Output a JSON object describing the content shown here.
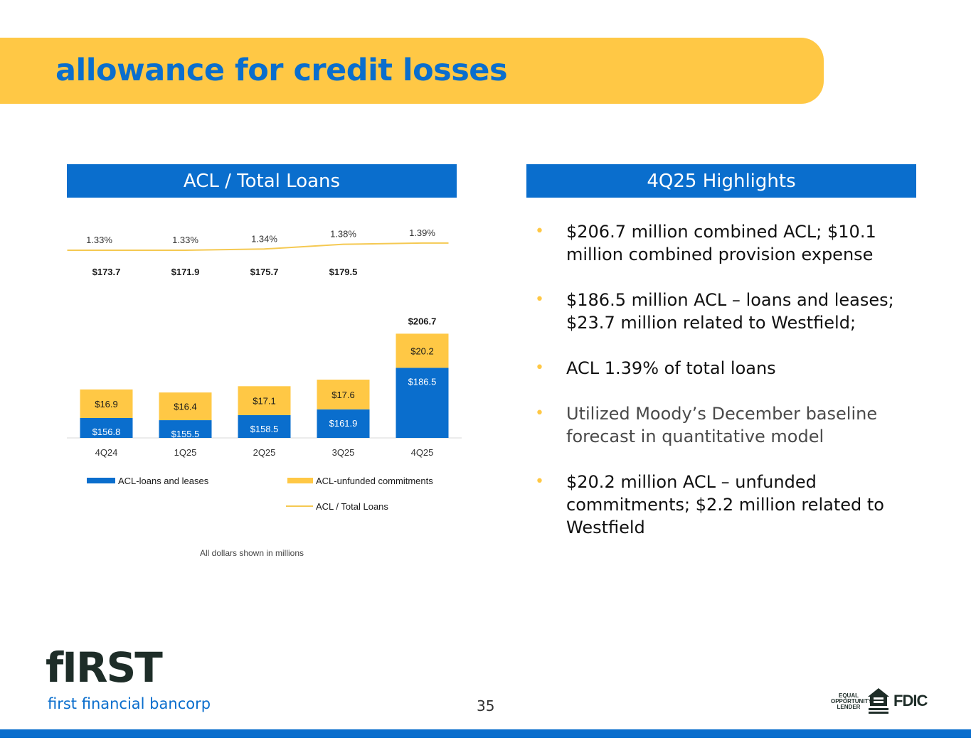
{
  "header": {
    "title": "allowance for credit losses"
  },
  "panels": {
    "left_title": "ACL / Total Loans",
    "right_title": "4Q25 Highlights"
  },
  "colors": {
    "brand_blue": "#0A6ECD",
    "brand_yellow": "#FFC845",
    "ratio_line": "#F5C952"
  },
  "chart_data": {
    "type": "bar",
    "stacked": true,
    "categories": [
      "4Q24",
      "1Q25",
      "2Q25",
      "3Q25",
      "4Q25"
    ],
    "series": [
      {
        "name": "ACL-loans and leases",
        "values": [
          156.8,
          155.5,
          158.5,
          161.9,
          186.5
        ],
        "labels": [
          "$156.8",
          "$155.5",
          "$158.5",
          "$161.9",
          "$186.5"
        ]
      },
      {
        "name": "ACL-unfunded commitments",
        "values": [
          16.9,
          16.4,
          17.1,
          17.6,
          20.2
        ],
        "labels": [
          "$16.9",
          "$16.4",
          "$17.1",
          "$17.6",
          "$20.2"
        ]
      }
    ],
    "totals": [
      173.7,
      171.9,
      175.7,
      179.5,
      206.7
    ],
    "total_labels": [
      "$173.7",
      "$171.9",
      "$175.7",
      "$179.5",
      "$206.7"
    ],
    "line_series": {
      "name": "ACL / Total Loans",
      "values": [
        1.33,
        1.33,
        1.34,
        1.38,
        1.39
      ],
      "labels": [
        "1.33%",
        "1.33%",
        "1.34%",
        "1.38%",
        "1.39%"
      ]
    },
    "legend_position": "bottom",
    "grid": false,
    "footnote": "All dollars shown in millions"
  },
  "highlights": [
    "$206.7 million combined ACL; $10.1 million combined provision expense",
    "$186.5 million ACL – loans and leases; $23.7 million related to Westfield;",
    "ACL 1.39% of total loans",
    "Utilized Moody’s December baseline forecast in quantitative model",
    "$20.2 million ACL – unfunded commitments; $2.2 million related to Westfield"
  ],
  "footer": {
    "logo_word": "fIRST",
    "logo_sub": "first financial bancorp",
    "page_number": "35",
    "equal_opportunity": "EQUAL OPPORTUNITY LENDER",
    "fdic": "FDIC"
  }
}
